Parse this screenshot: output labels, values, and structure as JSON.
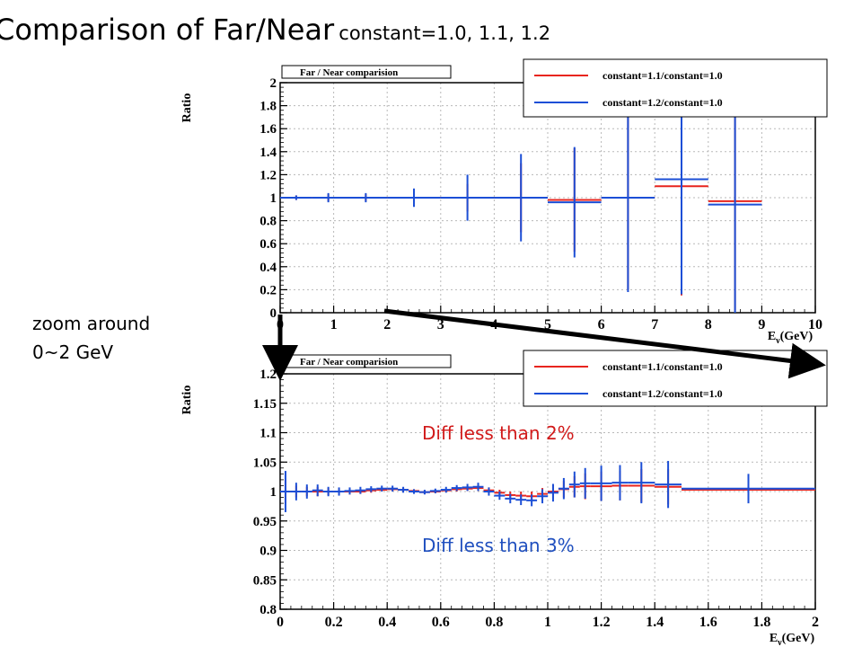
{
  "slide": {
    "title_main": "Comparison of Far/Near",
    "title_sub": "constant=1.0, 1.1, 1.2",
    "zoom_note_line1": "zoom around",
    "zoom_note_line2": "0~2 GeV",
    "diff_red": "Diff less than 2%",
    "diff_blue": "Diff less than 3%"
  },
  "colors": {
    "red": "#e8251e",
    "blue": "#1c4fd6",
    "grid": "#b8b8b8",
    "frame": "#000000",
    "text_red": "#d11a1a",
    "text_blue": "#1f4fbf"
  },
  "chart_data": [
    {
      "type": "line",
      "title": "Far / Near comparision",
      "ylabel": "Ratio",
      "xlabel": "E_ν(GeV)",
      "xlim": [
        0,
        10
      ],
      "ylim": [
        0,
        2
      ],
      "x_ticks": [
        "0",
        "1",
        "2",
        "3",
        "4",
        "5",
        "6",
        "7",
        "8",
        "9",
        "10"
      ],
      "y_ticks": [
        "0",
        "0.2",
        "0.4",
        "0.6",
        "0.8",
        "1",
        "1.2",
        "1.4",
        "1.6",
        "1.8",
        "2"
      ],
      "grid": true,
      "legend_position": "top-right",
      "series": [
        {
          "name": "constant=1.1/constant=1.0",
          "color": "red",
          "points": [
            {
              "x0": 0.0,
              "x1": 0.6,
              "y": 1.0,
              "err": 0.02
            },
            {
              "x0": 0.6,
              "x1": 1.2,
              "y": 1.0,
              "err": 0.03
            },
            {
              "x0": 1.2,
              "x1": 2.0,
              "y": 1.0,
              "err": 0.03
            },
            {
              "x0": 2.0,
              "x1": 3.0,
              "y": 1.0,
              "err": 0.06
            },
            {
              "x0": 3.0,
              "x1": 4.0,
              "y": 1.0,
              "err": 0.12
            },
            {
              "x0": 4.0,
              "x1": 5.0,
              "y": 1.0,
              "err": 0.3
            },
            {
              "x0": 5.0,
              "x1": 6.0,
              "y": 0.98,
              "err": 0.45
            },
            {
              "x0": 6.0,
              "x1": 7.0,
              "y": 1.0,
              "err": 0.8
            },
            {
              "x0": 7.0,
              "x1": 8.0,
              "y": 1.1,
              "err": 0.95
            },
            {
              "x0": 8.0,
              "x1": 9.0,
              "y": 0.97,
              "err": 0.95
            }
          ]
        },
        {
          "name": "constant=1.2/constant=1.0",
          "color": "blue",
          "points": [
            {
              "x0": 0.0,
              "x1": 0.6,
              "y": 1.0,
              "err": 0.02
            },
            {
              "x0": 0.6,
              "x1": 1.2,
              "y": 1.0,
              "err": 0.04
            },
            {
              "x0": 1.2,
              "x1": 2.0,
              "y": 1.0,
              "err": 0.04
            },
            {
              "x0": 2.0,
              "x1": 3.0,
              "y": 1.0,
              "err": 0.08
            },
            {
              "x0": 3.0,
              "x1": 4.0,
              "y": 1.0,
              "err": 0.2
            },
            {
              "x0": 4.0,
              "x1": 5.0,
              "y": 1.0,
              "err": 0.38
            },
            {
              "x0": 5.0,
              "x1": 6.0,
              "y": 0.96,
              "err": 0.48
            },
            {
              "x0": 6.0,
              "x1": 7.0,
              "y": 1.0,
              "err": 0.82
            },
            {
              "x0": 7.0,
              "x1": 8.0,
              "y": 1.16,
              "err": 1.0
            },
            {
              "x0": 8.0,
              "x1": 9.0,
              "y": 0.94,
              "err": 1.0
            }
          ]
        }
      ]
    },
    {
      "type": "line",
      "title": "Far / Near comparision",
      "ylabel": "Ratio",
      "xlabel": "E_ν(GeV)",
      "xlim": [
        0,
        2
      ],
      "ylim": [
        0.8,
        1.2
      ],
      "x_ticks": [
        "0",
        "0.2",
        "0.4",
        "0.6",
        "0.8",
        "1",
        "1.2",
        "1.4",
        "1.6",
        "1.8",
        "2"
      ],
      "y_ticks": [
        "0.8",
        "0.85",
        "0.9",
        "0.95",
        "1",
        "1.05",
        "1.1",
        "1.15",
        "1.2"
      ],
      "grid": true,
      "legend_position": "top-right",
      "series": [
        {
          "name": "constant=1.1/constant=1.0",
          "color": "red",
          "points": [
            {
              "x0": 0.0,
              "x1": 0.04,
              "y": 1.0,
              "err": 0.02
            },
            {
              "x0": 0.04,
              "x1": 0.08,
              "y": 1.0,
              "err": 0.01
            },
            {
              "x0": 0.08,
              "x1": 0.12,
              "y": 1.0,
              "err": 0.008
            },
            {
              "x0": 0.12,
              "x1": 0.16,
              "y": 1.0,
              "err": 0.008
            },
            {
              "x0": 0.16,
              "x1": 0.2,
              "y": 1.0,
              "err": 0.006
            },
            {
              "x0": 0.2,
              "x1": 0.24,
              "y": 1.0,
              "err": 0.005
            },
            {
              "x0": 0.24,
              "x1": 0.28,
              "y": 1.0,
              "err": 0.005
            },
            {
              "x0": 0.28,
              "x1": 0.32,
              "y": 1.0,
              "err": 0.004
            },
            {
              "x0": 0.32,
              "x1": 0.36,
              "y": 1.002,
              "err": 0.004
            },
            {
              "x0": 0.36,
              "x1": 0.4,
              "y": 1.003,
              "err": 0.003
            },
            {
              "x0": 0.4,
              "x1": 0.44,
              "y": 1.004,
              "err": 0.003
            },
            {
              "x0": 0.44,
              "x1": 0.48,
              "y": 1.003,
              "err": 0.003
            },
            {
              "x0": 0.48,
              "x1": 0.52,
              "y": 1.001,
              "err": 0.003
            },
            {
              "x0": 0.52,
              "x1": 0.56,
              "y": 0.999,
              "err": 0.003
            },
            {
              "x0": 0.56,
              "x1": 0.6,
              "y": 1.0,
              "err": 0.003
            },
            {
              "x0": 0.6,
              "x1": 0.64,
              "y": 1.002,
              "err": 0.003
            },
            {
              "x0": 0.64,
              "x1": 0.68,
              "y": 1.004,
              "err": 0.004
            },
            {
              "x0": 0.68,
              "x1": 0.72,
              "y": 1.005,
              "err": 0.004
            },
            {
              "x0": 0.72,
              "x1": 0.76,
              "y": 1.006,
              "err": 0.005
            },
            {
              "x0": 0.76,
              "x1": 0.8,
              "y": 1.002,
              "err": 0.005
            },
            {
              "x0": 0.8,
              "x1": 0.84,
              "y": 0.998,
              "err": 0.005
            },
            {
              "x0": 0.84,
              "x1": 0.88,
              "y": 0.994,
              "err": 0.006
            },
            {
              "x0": 0.88,
              "x1": 0.92,
              "y": 0.993,
              "err": 0.007
            },
            {
              "x0": 0.92,
              "x1": 0.96,
              "y": 0.992,
              "err": 0.008
            },
            {
              "x0": 0.96,
              "x1": 1.0,
              "y": 0.996,
              "err": 0.01
            },
            {
              "x0": 1.0,
              "x1": 1.04,
              "y": 1.0,
              "err": 0.012
            },
            {
              "x0": 1.04,
              "x1": 1.08,
              "y": 1.004,
              "err": 0.014
            },
            {
              "x0": 1.08,
              "x1": 1.12,
              "y": 1.008,
              "err": 0.018
            },
            {
              "x0": 1.12,
              "x1": 1.16,
              "y": 1.009,
              "err": 0.022
            },
            {
              "x0": 1.16,
              "x1": 1.24,
              "y": 1.009,
              "err": 0.025
            },
            {
              "x0": 1.24,
              "x1": 1.3,
              "y": 1.01,
              "err": 0.025
            },
            {
              "x0": 1.3,
              "x1": 1.4,
              "y": 1.01,
              "err": 0.028
            },
            {
              "x0": 1.4,
              "x1": 1.5,
              "y": 1.008,
              "err": 0.03
            },
            {
              "x0": 1.5,
              "x1": 2.0,
              "y": 1.003,
              "err": 0.02
            }
          ]
        },
        {
          "name": "constant=1.2/constant=1.0",
          "color": "blue",
          "points": [
            {
              "x0": 0.0,
              "x1": 0.04,
              "y": 1.0,
              "err": 0.035
            },
            {
              "x0": 0.04,
              "x1": 0.08,
              "y": 1.0,
              "err": 0.015
            },
            {
              "x0": 0.08,
              "x1": 0.12,
              "y": 1.0,
              "err": 0.012
            },
            {
              "x0": 0.12,
              "x1": 0.16,
              "y": 1.002,
              "err": 0.01
            },
            {
              "x0": 0.16,
              "x1": 0.2,
              "y": 1.0,
              "err": 0.008
            },
            {
              "x0": 0.2,
              "x1": 0.24,
              "y": 1.0,
              "err": 0.007
            },
            {
              "x0": 0.24,
              "x1": 0.28,
              "y": 1.001,
              "err": 0.006
            },
            {
              "x0": 0.28,
              "x1": 0.32,
              "y": 1.002,
              "err": 0.006
            },
            {
              "x0": 0.32,
              "x1": 0.36,
              "y": 1.004,
              "err": 0.005
            },
            {
              "x0": 0.36,
              "x1": 0.4,
              "y": 1.005,
              "err": 0.005
            },
            {
              "x0": 0.4,
              "x1": 0.44,
              "y": 1.005,
              "err": 0.005
            },
            {
              "x0": 0.44,
              "x1": 0.48,
              "y": 1.003,
              "err": 0.005
            },
            {
              "x0": 0.48,
              "x1": 0.52,
              "y": 1.0,
              "err": 0.004
            },
            {
              "x0": 0.52,
              "x1": 0.56,
              "y": 0.999,
              "err": 0.004
            },
            {
              "x0": 0.56,
              "x1": 0.6,
              "y": 1.001,
              "err": 0.004
            },
            {
              "x0": 0.6,
              "x1": 0.64,
              "y": 1.003,
              "err": 0.005
            },
            {
              "x0": 0.64,
              "x1": 0.68,
              "y": 1.006,
              "err": 0.005
            },
            {
              "x0": 0.68,
              "x1": 0.72,
              "y": 1.007,
              "err": 0.006
            },
            {
              "x0": 0.72,
              "x1": 0.76,
              "y": 1.008,
              "err": 0.007
            },
            {
              "x0": 0.76,
              "x1": 0.8,
              "y": 1.0,
              "err": 0.007
            },
            {
              "x0": 0.8,
              "x1": 0.84,
              "y": 0.993,
              "err": 0.007
            },
            {
              "x0": 0.84,
              "x1": 0.88,
              "y": 0.988,
              "err": 0.008
            },
            {
              "x0": 0.88,
              "x1": 0.92,
              "y": 0.986,
              "err": 0.009
            },
            {
              "x0": 0.92,
              "x1": 0.96,
              "y": 0.985,
              "err": 0.01
            },
            {
              "x0": 0.96,
              "x1": 1.0,
              "y": 0.992,
              "err": 0.012
            },
            {
              "x0": 1.0,
              "x1": 1.04,
              "y": 0.998,
              "err": 0.015
            },
            {
              "x0": 1.04,
              "x1": 1.08,
              "y": 1.005,
              "err": 0.018
            },
            {
              "x0": 1.08,
              "x1": 1.12,
              "y": 1.012,
              "err": 0.022
            },
            {
              "x0": 1.12,
              "x1": 1.16,
              "y": 1.014,
              "err": 0.026
            },
            {
              "x0": 1.16,
              "x1": 1.24,
              "y": 1.014,
              "err": 0.03
            },
            {
              "x0": 1.24,
              "x1": 1.3,
              "y": 1.015,
              "err": 0.03
            },
            {
              "x0": 1.3,
              "x1": 1.4,
              "y": 1.015,
              "err": 0.035
            },
            {
              "x0": 1.4,
              "x1": 1.5,
              "y": 1.012,
              "err": 0.04
            },
            {
              "x0": 1.5,
              "x1": 2.0,
              "y": 1.005,
              "err": 0.025
            }
          ]
        }
      ]
    }
  ]
}
